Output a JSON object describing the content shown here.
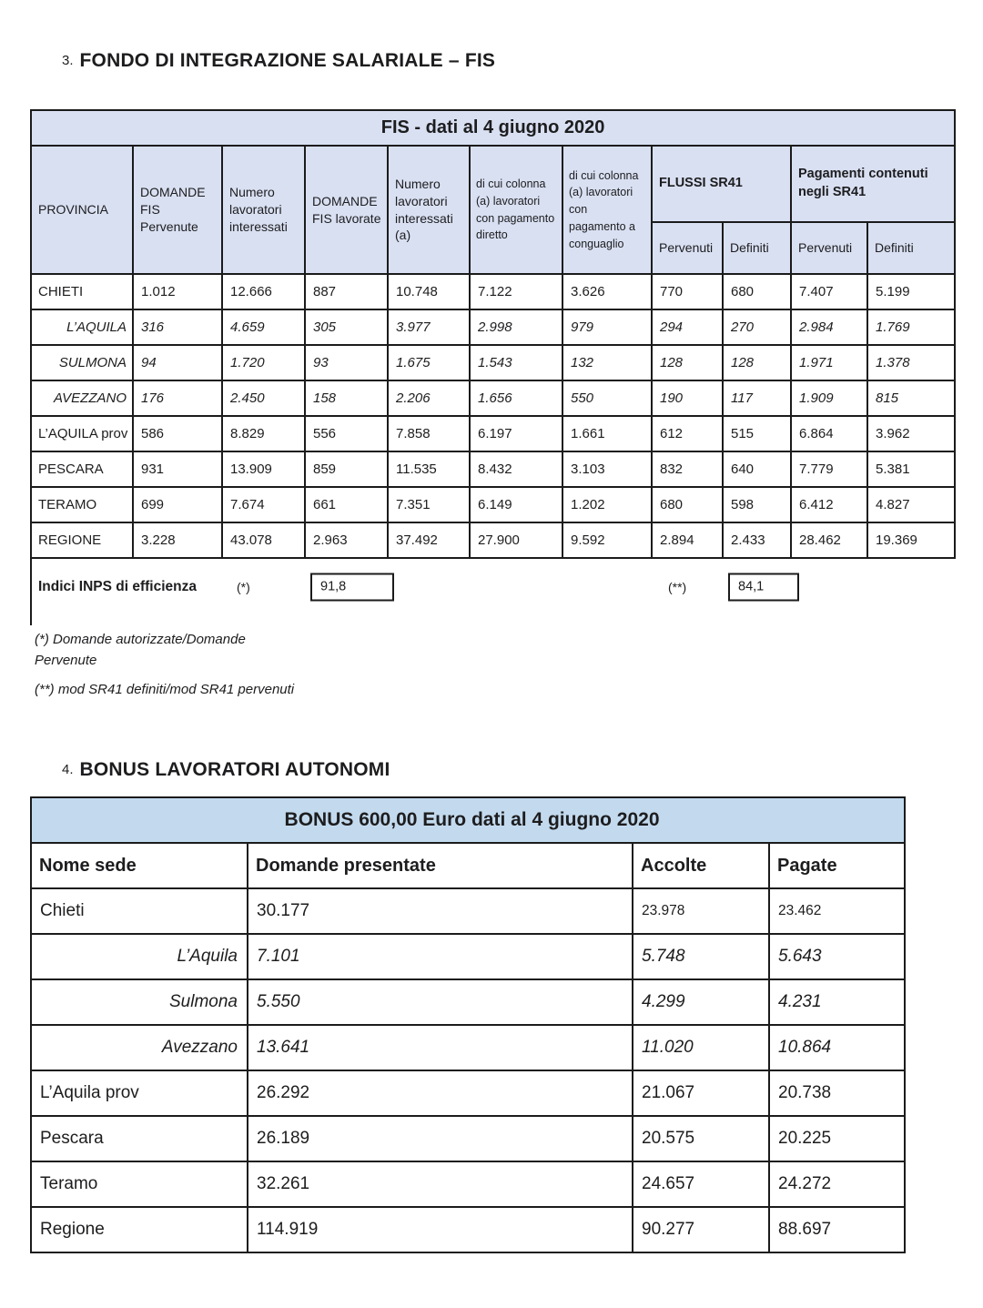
{
  "sections": {
    "fis": {
      "number": "3.",
      "title": "FONDO DI INTEGRAZIONE SALARIALE – FIS"
    },
    "bonus": {
      "number": "4.",
      "title": "BONUS LAVORATORI AUTONOMI"
    }
  },
  "fis_table": {
    "title": "FIS - dati al 4 giugno 2020",
    "headers": {
      "provincia": "PROVINCIA",
      "domande_pervenute": "DOMANDE FIS Pervenute",
      "numero_lavoratori": "Numero lavoratori interessati",
      "domande_lavorate": "DOMANDE FIS lavorate",
      "numero_lavoratori_a": "Numero lavoratori interessati (a)",
      "pagamento_diretto": "di cui colonna (a) lavoratori con pagamento diretto",
      "pagamento_conguaglio": "di cui colonna (a) lavoratori con pagamento a conguaglio",
      "flussi_sr41": "FLUSSI SR41",
      "pagamenti_sr41": "Pagamenti contenuti negli SR41",
      "pervenuti": "Pervenuti",
      "definiti": "Definiti"
    },
    "rows": [
      {
        "provincia": "CHIETI",
        "sub": false,
        "values": [
          "1.012",
          "12.666",
          "887",
          "10.748",
          "7.122",
          "3.626",
          "770",
          "680",
          "7.407",
          "5.199"
        ]
      },
      {
        "provincia": "L’AQUILA",
        "sub": true,
        "values": [
          "316",
          "4.659",
          "305",
          "3.977",
          "2.998",
          "979",
          "294",
          "270",
          "2.984",
          "1.769"
        ]
      },
      {
        "provincia": "SULMONA",
        "sub": true,
        "values": [
          "94",
          "1.720",
          "93",
          "1.675",
          "1.543",
          "132",
          "128",
          "128",
          "1.971",
          "1.378"
        ]
      },
      {
        "provincia": "AVEZZANO",
        "sub": true,
        "values": [
          "176",
          "2.450",
          "158",
          "2.206",
          "1.656",
          "550",
          "190",
          "117",
          "1.909",
          "815"
        ]
      },
      {
        "provincia": "L’AQUILA prov",
        "sub": false,
        "values": [
          "586",
          "8.829",
          "556",
          "7.858",
          "6.197",
          "1.661",
          "612",
          "515",
          "6.864",
          "3.962"
        ]
      },
      {
        "provincia": "PESCARA",
        "sub": false,
        "values": [
          "931",
          "13.909",
          "859",
          "11.535",
          "8.432",
          "3.103",
          "832",
          "640",
          "7.779",
          "5.381"
        ]
      },
      {
        "provincia": "TERAMO",
        "sub": false,
        "values": [
          "699",
          "7.674",
          "661",
          "7.351",
          "6.149",
          "1.202",
          "680",
          "598",
          "6.412",
          "4.827"
        ]
      },
      {
        "provincia": "REGIONE",
        "sub": false,
        "values": [
          "3.228",
          "43.078",
          "2.963",
          "37.492",
          "27.900",
          "9.592",
          "2.894",
          "2.433",
          "28.462",
          "19.369"
        ]
      }
    ],
    "indici": {
      "label": "Indici INPS di efficienza",
      "star1": "(*)",
      "value1": "91,8",
      "star2": "(**)",
      "value2": "84,1"
    },
    "footnotes": {
      "star_line1": "(*) Domande autorizzate/Domande",
      "star_line2": "Pervenute",
      "doublestar": "(**) mod SR41 definiti/mod SR41 pervenuti"
    }
  },
  "bonus_table": {
    "title": "BONUS 600,00 Euro dati al 4 giugno 2020",
    "headers": {
      "sede": "Nome sede",
      "domande": "Domande presentate",
      "accolte": "Accolte",
      "pagate": "Pagate"
    },
    "rows": [
      {
        "sede": "Chieti",
        "sub": false,
        "values": [
          "30.177",
          "23.978",
          "23.462"
        ]
      },
      {
        "sede": "L’Aquila",
        "sub": true,
        "values": [
          "7.101",
          "5.748",
          "5.643"
        ]
      },
      {
        "sede": "Sulmona",
        "sub": true,
        "values": [
          "5.550",
          "4.299",
          "4.231"
        ]
      },
      {
        "sede": "Avezzano",
        "sub": true,
        "values": [
          "13.641",
          "11.020",
          "10.864"
        ]
      },
      {
        "sede": "L’Aquila prov",
        "sub": false,
        "values": [
          "26.292",
          "21.067",
          "20.738"
        ]
      },
      {
        "sede": "Pescara",
        "sub": false,
        "values": [
          "26.189",
          "20.575",
          "20.225"
        ]
      },
      {
        "sede": "Teramo",
        "sub": false,
        "values": [
          "32.261",
          "24.657",
          "24.272"
        ]
      },
      {
        "sede": "Regione",
        "sub": false,
        "values": [
          "114.919",
          "90.277",
          "88.697"
        ]
      }
    ]
  },
  "colors": {
    "table1_header_bg": "#d9e0f2",
    "table2_title_bg": "#c3daee",
    "border_color": "#1b1b1b",
    "text_color": "#1d1d1f"
  }
}
